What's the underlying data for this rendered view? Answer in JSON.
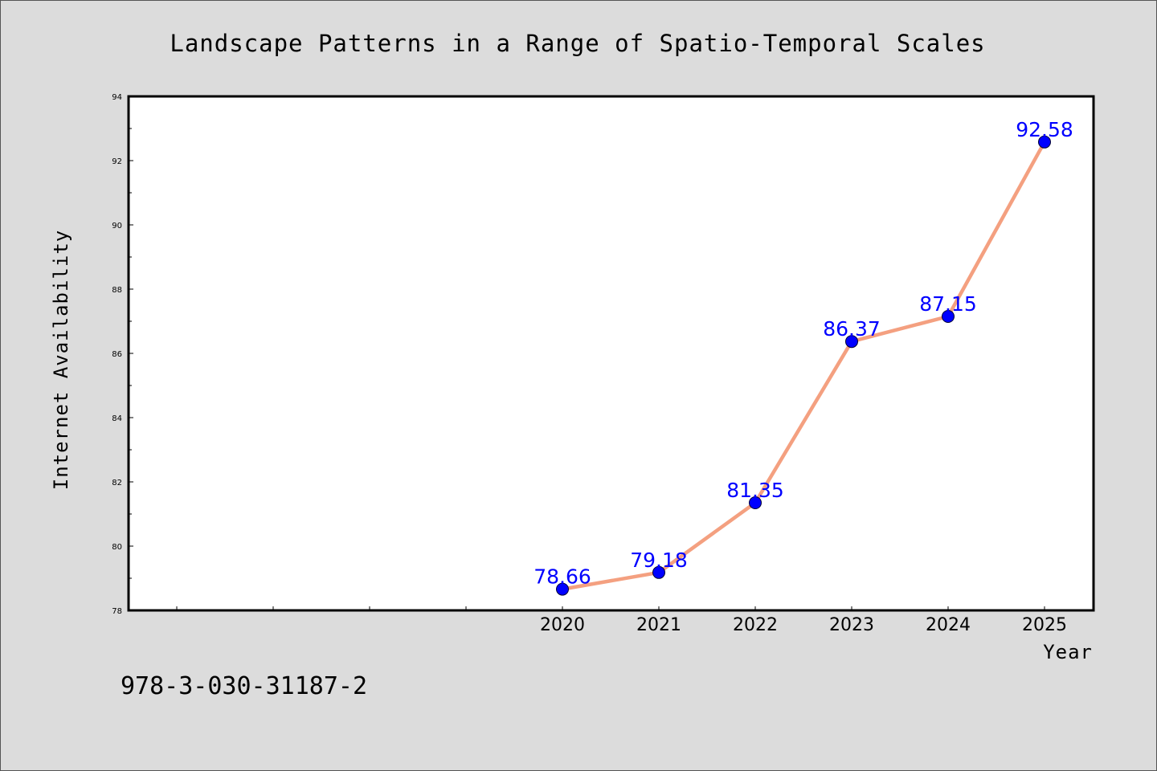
{
  "chart_data": {
    "type": "line",
    "title": "Landscape Patterns in a Range of Spatio-Temporal Scales",
    "xlabel": "Year",
    "ylabel": "Internet Availability",
    "categories": [
      "2020",
      "2021",
      "2022",
      "2023",
      "2024",
      "2025"
    ],
    "x_axis_slots": 10,
    "values": [
      78.66,
      79.18,
      81.35,
      86.37,
      87.15,
      92.58
    ],
    "data_labels": [
      "78.66",
      "79.18",
      "81.35",
      "86.37",
      "87.15",
      "92.58"
    ],
    "ylim": [
      78,
      94
    ],
    "yticks": [
      "78",
      "80",
      "82",
      "84",
      "86",
      "88",
      "90",
      "92",
      "94"
    ],
    "grid": false,
    "legend": "none",
    "colors": {
      "line": "#f4a080",
      "marker": "#0000ff",
      "data_label": "#0000ff",
      "background": "#dcdcdc",
      "plot_background": "#ffffff"
    }
  },
  "footnote": "978-3-030-31187-2"
}
